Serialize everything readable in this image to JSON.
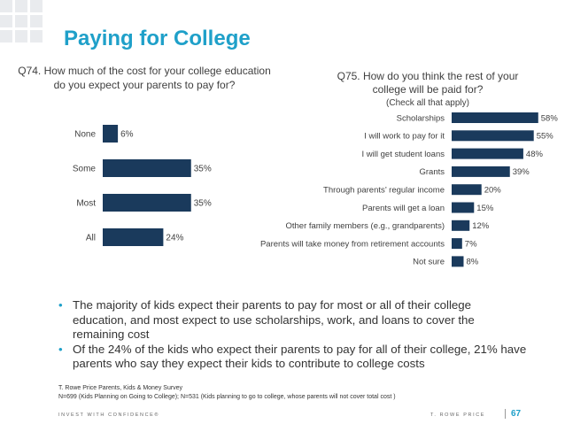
{
  "slide": {
    "title": "Paying for College",
    "bullets": [
      "The majority of kids expect their parents to pay for most or all of their college education, and most expect to use scholarships, work, and loans to cover the remaining cost",
      "Of the 24% of the kids who expect their parents to pay for all of their college, 21% have parents who say they expect their kids to contribute to college costs"
    ],
    "source_line1": "T. Rowe Price Parents, Kids & Money Survey",
    "source_line2": "N=699 (Kids Planning on Going to College); N=531 (Kids planning to go to college, whose parents will not cover total cost )",
    "footer_tagline": "INVEST WITH CONFIDENCE®",
    "footer_brand": "T. ROWE PRICE",
    "page_number": "67"
  },
  "colors": {
    "accent": "#1fa0c9",
    "bar": "#1a3a5c",
    "text": "#404040"
  },
  "chart_data": [
    {
      "type": "bar",
      "orientation": "horizontal",
      "question": "Q74. How much of the cost for your college education do you expect your parents to pay for?",
      "categories": [
        "None",
        "Some",
        "Most",
        "All"
      ],
      "values": [
        6,
        35,
        35,
        24
      ],
      "value_labels": [
        "6%",
        "35%",
        "35%",
        "24%"
      ],
      "unit": "%",
      "xlim": [
        0,
        40
      ],
      "grid": false,
      "legend": "none"
    },
    {
      "type": "bar",
      "orientation": "horizontal",
      "question": "Q75. How do you think the rest of your college will be paid for?",
      "subtitle": "(Check all that apply)",
      "categories": [
        "Scholarships",
        "I will work to pay for it",
        "I will get student loans",
        "Grants",
        "Through parents’ regular income",
        "Parents will get a loan",
        "Other family members (e.g., grandparents)",
        "Parents will take money from retirement accounts",
        "Not sure"
      ],
      "values": [
        58,
        55,
        48,
        39,
        20,
        15,
        12,
        7,
        8
      ],
      "value_labels": [
        "58%",
        "55%",
        "48%",
        "39%",
        "20%",
        "15%",
        "12%",
        "7%",
        "8%"
      ],
      "unit": "%",
      "xlim": [
        0,
        70
      ],
      "grid": false,
      "legend": "none"
    }
  ]
}
